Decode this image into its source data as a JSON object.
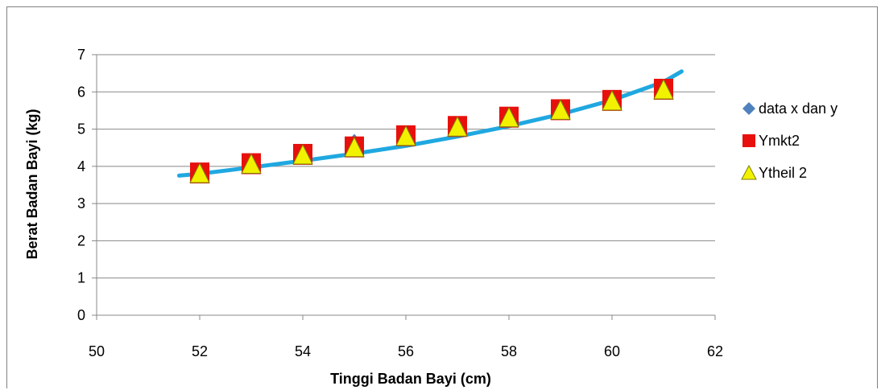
{
  "chart_data": {
    "type": "scatter",
    "xlabel": "Tinggi Badan Bayi (cm)",
    "ylabel": "Berat Badan Bayi (kg)",
    "xlim": [
      50,
      62
    ],
    "ylim": [
      0,
      7
    ],
    "x_ticks": [
      50,
      52,
      54,
      56,
      58,
      60,
      62
    ],
    "y_ticks": [
      0,
      1,
      2,
      3,
      4,
      5,
      6,
      7
    ],
    "grid": "horizontal",
    "legend_position": "right",
    "series": [
      {
        "name": "data x dan y",
        "marker": "diamond",
        "color": "#4f81bd",
        "x": [
          52,
          53,
          54,
          55,
          56,
          57,
          58,
          59,
          60,
          61
        ],
        "y": [
          3.8,
          4.0,
          4.3,
          4.7,
          4.9,
          5.1,
          5.3,
          5.5,
          5.8,
          6.0
        ]
      },
      {
        "name": "Ymkt2",
        "marker": "square",
        "color": "#e8100c",
        "x": [
          52,
          53,
          54,
          55,
          56,
          57,
          58,
          59,
          60,
          61
        ],
        "y": [
          3.8,
          4.05,
          4.3,
          4.5,
          4.8,
          5.05,
          5.3,
          5.5,
          5.75,
          6.05
        ]
      },
      {
        "name": "Ytheil 2",
        "marker": "triangle",
        "color": "#f2f200",
        "x": [
          52,
          53,
          54,
          55,
          56,
          57,
          58,
          59,
          60,
          61
        ],
        "y": [
          3.8,
          4.05,
          4.3,
          4.5,
          4.8,
          5.05,
          5.3,
          5.5,
          5.75,
          6.05
        ]
      }
    ],
    "trendline": {
      "type": "exponential",
      "color": "#1fa8e0",
      "x": [
        51.6,
        52,
        53,
        54,
        55,
        56,
        57,
        58,
        59,
        60,
        61,
        61.35
      ],
      "y": [
        3.75,
        3.8,
        3.97,
        4.15,
        4.34,
        4.55,
        4.8,
        5.08,
        5.4,
        5.78,
        6.27,
        6.55
      ]
    }
  }
}
